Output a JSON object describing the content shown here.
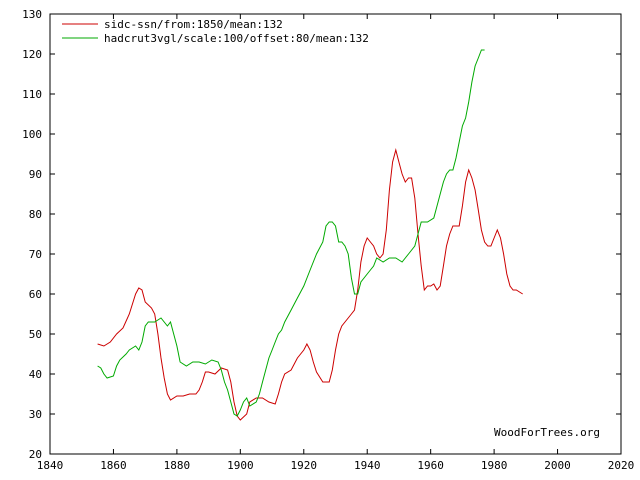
{
  "chart_data": {
    "type": "line",
    "title": "",
    "xlabel": "",
    "ylabel": "",
    "xlim": [
      1840,
      2020
    ],
    "ylim": [
      20,
      130
    ],
    "x_ticks": [
      1840,
      1860,
      1880,
      1900,
      1920,
      1940,
      1960,
      1980,
      2000,
      2020
    ],
    "y_ticks": [
      20,
      30,
      40,
      50,
      60,
      70,
      80,
      90,
      100,
      110,
      120,
      130
    ],
    "grid": false,
    "legend_position": "top-left",
    "watermark": "WoodForTrees.org",
    "series": [
      {
        "name": "sidc-ssn/from:1850/mean:132",
        "color": "#cc0000",
        "points": [
          [
            1855,
            47.5
          ],
          [
            1857,
            47
          ],
          [
            1859,
            48
          ],
          [
            1861,
            50
          ],
          [
            1863,
            51.5
          ],
          [
            1865,
            55
          ],
          [
            1867,
            60
          ],
          [
            1868,
            61.5
          ],
          [
            1869,
            61
          ],
          [
            1870,
            58
          ],
          [
            1872,
            56.5
          ],
          [
            1873,
            55
          ],
          [
            1874,
            50
          ],
          [
            1875,
            44
          ],
          [
            1876,
            39
          ],
          [
            1877,
            35
          ],
          [
            1878,
            33.5
          ],
          [
            1880,
            34.5
          ],
          [
            1882,
            34.5
          ],
          [
            1884,
            35
          ],
          [
            1886,
            35
          ],
          [
            1887,
            36
          ],
          [
            1888,
            38
          ],
          [
            1889,
            40.5
          ],
          [
            1890,
            40.5
          ],
          [
            1892,
            40
          ],
          [
            1894,
            41.5
          ],
          [
            1896,
            41
          ],
          [
            1897,
            38
          ],
          [
            1898,
            33
          ],
          [
            1899,
            29.5
          ],
          [
            1900,
            28.5
          ],
          [
            1902,
            30
          ],
          [
            1903,
            33
          ],
          [
            1905,
            34
          ],
          [
            1907,
            34
          ],
          [
            1909,
            33
          ],
          [
            1911,
            32.5
          ],
          [
            1912,
            35
          ],
          [
            1913,
            38
          ],
          [
            1914,
            40
          ],
          [
            1916,
            41
          ],
          [
            1918,
            44
          ],
          [
            1920,
            46
          ],
          [
            1921,
            47.5
          ],
          [
            1922,
            46
          ],
          [
            1923,
            43
          ],
          [
            1924,
            40.5
          ],
          [
            1926,
            38
          ],
          [
            1928,
            38
          ],
          [
            1929,
            41
          ],
          [
            1930,
            46
          ],
          [
            1931,
            50
          ],
          [
            1932,
            52
          ],
          [
            1934,
            54
          ],
          [
            1935,
            55
          ],
          [
            1936,
            56
          ],
          [
            1937,
            61
          ],
          [
            1938,
            68
          ],
          [
            1939,
            72
          ],
          [
            1940,
            74
          ],
          [
            1941,
            73
          ],
          [
            1942,
            72
          ],
          [
            1943,
            70
          ],
          [
            1944,
            69
          ],
          [
            1945,
            70
          ],
          [
            1946,
            76
          ],
          [
            1947,
            86
          ],
          [
            1948,
            93
          ],
          [
            1949,
            96
          ],
          [
            1950,
            93
          ],
          [
            1951,
            90
          ],
          [
            1952,
            88
          ],
          [
            1953,
            89
          ],
          [
            1954,
            89
          ],
          [
            1955,
            84
          ],
          [
            1956,
            75
          ],
          [
            1957,
            67
          ],
          [
            1958,
            61
          ],
          [
            1959,
            62
          ],
          [
            1960,
            62
          ],
          [
            1961,
            62.5
          ],
          [
            1962,
            61
          ],
          [
            1963,
            62
          ],
          [
            1964,
            67
          ],
          [
            1965,
            72
          ],
          [
            1966,
            75
          ],
          [
            1967,
            77
          ],
          [
            1968,
            77
          ],
          [
            1969,
            77
          ],
          [
            1970,
            82
          ],
          [
            1971,
            88
          ],
          [
            1972,
            91
          ],
          [
            1973,
            89
          ],
          [
            1974,
            86
          ],
          [
            1975,
            81
          ],
          [
            1976,
            76
          ],
          [
            1977,
            73
          ],
          [
            1978,
            72
          ],
          [
            1979,
            72
          ],
          [
            1980,
            74
          ],
          [
            1981,
            76
          ],
          [
            1982,
            74
          ],
          [
            1983,
            70
          ],
          [
            1984,
            65
          ],
          [
            1985,
            62
          ],
          [
            1986,
            61
          ],
          [
            1987,
            61
          ],
          [
            1988,
            60.5
          ],
          [
            1989,
            60
          ]
        ]
      },
      {
        "name": "hadcrut3vgl/scale:100/offset:80/mean:132",
        "color": "#00aa00",
        "points": [
          [
            1855,
            42
          ],
          [
            1856,
            41.5
          ],
          [
            1857,
            40
          ],
          [
            1858,
            39
          ],
          [
            1860,
            39.5
          ],
          [
            1861,
            42
          ],
          [
            1862,
            43.5
          ],
          [
            1864,
            45
          ],
          [
            1865,
            46
          ],
          [
            1867,
            47
          ],
          [
            1868,
            46
          ],
          [
            1869,
            48
          ],
          [
            1870,
            52
          ],
          [
            1871,
            53
          ],
          [
            1873,
            53
          ],
          [
            1875,
            54
          ],
          [
            1877,
            52
          ],
          [
            1878,
            53
          ],
          [
            1879,
            50
          ],
          [
            1880,
            47
          ],
          [
            1881,
            43
          ],
          [
            1883,
            42
          ],
          [
            1885,
            43
          ],
          [
            1887,
            43
          ],
          [
            1889,
            42.5
          ],
          [
            1891,
            43.5
          ],
          [
            1893,
            43
          ],
          [
            1894,
            41
          ],
          [
            1895,
            38
          ],
          [
            1896,
            36
          ],
          [
            1897,
            33
          ],
          [
            1898,
            30
          ],
          [
            1899,
            29.5
          ],
          [
            1900,
            31
          ],
          [
            1901,
            33
          ],
          [
            1902,
            34
          ],
          [
            1903,
            32
          ],
          [
            1905,
            33
          ],
          [
            1906,
            35
          ],
          [
            1907,
            38
          ],
          [
            1908,
            41
          ],
          [
            1909,
            44
          ],
          [
            1910,
            46
          ],
          [
            1911,
            48
          ],
          [
            1912,
            50
          ],
          [
            1913,
            51
          ],
          [
            1914,
            53
          ],
          [
            1916,
            56
          ],
          [
            1918,
            59
          ],
          [
            1920,
            62
          ],
          [
            1922,
            66
          ],
          [
            1924,
            70
          ],
          [
            1926,
            73
          ],
          [
            1927,
            77
          ],
          [
            1928,
            78
          ],
          [
            1929,
            78
          ],
          [
            1930,
            77
          ],
          [
            1931,
            73
          ],
          [
            1932,
            73
          ],
          [
            1933,
            72
          ],
          [
            1934,
            70
          ],
          [
            1935,
            64
          ],
          [
            1936,
            60
          ],
          [
            1937,
            60
          ],
          [
            1938,
            63
          ],
          [
            1940,
            65
          ],
          [
            1941,
            66
          ],
          [
            1942,
            67
          ],
          [
            1943,
            69
          ],
          [
            1945,
            68
          ],
          [
            1947,
            69
          ],
          [
            1949,
            69
          ],
          [
            1951,
            68
          ],
          [
            1953,
            70
          ],
          [
            1955,
            72
          ],
          [
            1957,
            78
          ],
          [
            1959,
            78
          ],
          [
            1961,
            79
          ],
          [
            1962,
            82
          ],
          [
            1963,
            85
          ],
          [
            1964,
            88
          ],
          [
            1965,
            90
          ],
          [
            1966,
            91
          ],
          [
            1967,
            91
          ],
          [
            1968,
            94
          ],
          [
            1969,
            98
          ],
          [
            1970,
            102
          ],
          [
            1971,
            104
          ],
          [
            1972,
            108
          ],
          [
            1973,
            113
          ],
          [
            1974,
            117
          ],
          [
            1975,
            119
          ],
          [
            1976,
            121
          ],
          [
            1977,
            121
          ]
        ]
      }
    ]
  }
}
